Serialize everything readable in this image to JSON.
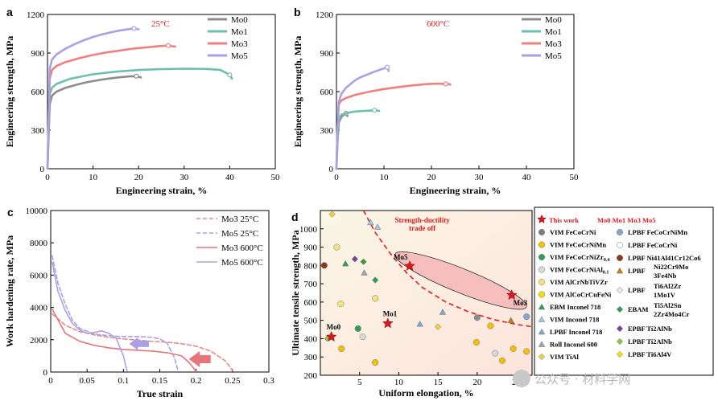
{
  "chart_data": [
    {
      "panel": "a",
      "type": "line",
      "annotation": "25°C",
      "xlabel": "Engineering strain, %",
      "ylabel": "Engineering strength, MPa",
      "xlim": [
        0,
        50
      ],
      "ylim": [
        0,
        1200
      ],
      "xticks": [
        0,
        10,
        20,
        30,
        40,
        50
      ],
      "yticks": [
        0,
        300,
        600,
        900,
        1200
      ],
      "legend_position": "top-right",
      "series": [
        {
          "name": "Mo0",
          "color": "#8c8c8c",
          "x": [
            0,
            0.25,
            0.5,
            1,
            2,
            4,
            6,
            8,
            10,
            12,
            14,
            16,
            18,
            19.5,
            20.5
          ],
          "y": [
            0,
            250,
            500,
            570,
            600,
            630,
            650,
            668,
            682,
            694,
            704,
            712,
            718,
            720,
            710
          ]
        },
        {
          "name": "Mo1",
          "color": "#6dbfb0",
          "x": [
            0,
            0.25,
            0.5,
            1,
            2,
            5,
            10,
            15,
            20,
            25,
            30,
            35,
            38,
            40,
            40.5
          ],
          "y": [
            0,
            300,
            580,
            630,
            660,
            700,
            735,
            755,
            768,
            775,
            778,
            776,
            768,
            730,
            700
          ]
        },
        {
          "name": "Mo3",
          "color": "#f08080",
          "x": [
            0,
            0.25,
            0.5,
            1,
            2,
            4,
            7,
            10,
            13,
            16,
            19,
            22,
            25,
            26.5,
            28
          ],
          "y": [
            0,
            350,
            700,
            770,
            800,
            830,
            860,
            885,
            905,
            920,
            935,
            945,
            955,
            958,
            950
          ]
        },
        {
          "name": "Mo5",
          "color": "#aaa0e8",
          "x": [
            0,
            0.25,
            0.5,
            1,
            2,
            4,
            6,
            8,
            10,
            12,
            14,
            16,
            18,
            19,
            20
          ],
          "y": [
            0,
            400,
            780,
            850,
            890,
            935,
            970,
            1000,
            1025,
            1045,
            1062,
            1076,
            1086,
            1090,
            1085
          ]
        }
      ]
    },
    {
      "panel": "b",
      "type": "line",
      "annotation": "600°C",
      "xlabel": "Engineering strain, %",
      "ylabel": "Engineering strength, MPa",
      "xlim": [
        0,
        50
      ],
      "ylim": [
        0,
        1200
      ],
      "xticks": [
        0,
        10,
        20,
        30,
        40,
        50
      ],
      "yticks": [
        0,
        300,
        600,
        900,
        1200
      ],
      "legend_position": "top-right",
      "series": [
        {
          "name": "Mo0",
          "color": "#8c8c8c",
          "x": [
            0,
            0.2,
            0.5,
            1,
            1.5,
            2,
            2.3
          ],
          "y": [
            0,
            200,
            360,
            400,
            420,
            430,
            410
          ]
        },
        {
          "name": "Mo1",
          "color": "#6dbfb0",
          "x": [
            0,
            0.2,
            0.5,
            1,
            2,
            3,
            4,
            5,
            6,
            7,
            8,
            9
          ],
          "y": [
            0,
            200,
            380,
            420,
            430,
            440,
            445,
            448,
            450,
            452,
            455,
            450
          ]
        },
        {
          "name": "Mo3",
          "color": "#f08080",
          "x": [
            0,
            0.2,
            0.5,
            1,
            2,
            4,
            7,
            10,
            13,
            16,
            19,
            21,
            23,
            24
          ],
          "y": [
            0,
            300,
            500,
            530,
            550,
            575,
            600,
            620,
            635,
            648,
            658,
            662,
            660,
            655
          ]
        },
        {
          "name": "Mo5",
          "color": "#aaa0e8",
          "x": [
            0,
            0.2,
            0.5,
            1,
            2,
            3,
            4,
            5,
            6,
            7,
            8,
            9,
            10,
            10.7,
            11
          ],
          "y": [
            0,
            300,
            520,
            580,
            630,
            660,
            690,
            710,
            725,
            740,
            755,
            768,
            780,
            790,
            760
          ]
        }
      ]
    },
    {
      "panel": "c",
      "type": "line",
      "xlabel": "True strain",
      "ylabel": "Work hardening rate, MPa",
      "xlim": [
        0,
        0.3
      ],
      "ylim": [
        0,
        10000
      ],
      "xticks": [
        0,
        0.05,
        0.1,
        0.15,
        0.2,
        0.25,
        0.3
      ],
      "xticklabels": [
        "0",
        "0.05",
        "0.1",
        "0.15",
        "0.2",
        "0.25",
        "0.3"
      ],
      "yticks": [
        0,
        2000,
        4000,
        6000,
        8000,
        10000
      ],
      "legend_position": "top-right",
      "series": [
        {
          "name": "Mo3 25°C",
          "color": "#e88a8a",
          "dashed": true,
          "x": [
            0.002,
            0.02,
            0.04,
            0.06,
            0.08,
            0.1,
            0.12,
            0.14,
            0.16,
            0.18,
            0.2,
            0.22,
            0.24,
            0.25
          ],
          "y": [
            3600,
            2900,
            2500,
            2300,
            2150,
            2050,
            1980,
            1900,
            1850,
            1750,
            1600,
            1300,
            700,
            100
          ]
        },
        {
          "name": "Mo5 25°C",
          "color": "#aaa0e8",
          "dashed": true,
          "x": [
            0.002,
            0.01,
            0.02,
            0.03,
            0.04,
            0.06,
            0.08,
            0.1,
            0.12,
            0.14,
            0.15,
            0.16,
            0.17,
            0.175
          ],
          "y": [
            7200,
            5500,
            4200,
            3200,
            2700,
            2350,
            2250,
            2200,
            2200,
            2150,
            2050,
            1800,
            900,
            100
          ]
        },
        {
          "name": "Mo3 600°C",
          "color": "#e8747c",
          "dashed": false,
          "x": [
            0.002,
            0.02,
            0.04,
            0.06,
            0.08,
            0.1,
            0.12,
            0.14,
            0.16,
            0.18,
            0.19,
            0.2
          ],
          "y": [
            3900,
            2400,
            1900,
            1650,
            1500,
            1400,
            1350,
            1300,
            1200,
            1000,
            600,
            50
          ]
        },
        {
          "name": "Mo5 600°C",
          "color": "#aaa0e8",
          "dashed": false,
          "x": [
            0.002,
            0.01,
            0.02,
            0.03,
            0.04,
            0.05,
            0.06,
            0.07,
            0.08,
            0.09,
            0.1,
            0.105
          ],
          "y": [
            6800,
            5000,
            3800,
            3000,
            2600,
            2400,
            2450,
            2550,
            2400,
            2100,
            1000,
            50
          ]
        }
      ]
    },
    {
      "panel": "d",
      "type": "scatter",
      "xlabel": "Uniform elongation, %",
      "ylabel": "Ultimate tensile strength, MPa",
      "xlim": [
        0,
        27
      ],
      "ylim": [
        200,
        1100
      ],
      "xticks": [
        5,
        10,
        15,
        20,
        25
      ],
      "yticks": [
        200,
        300,
        400,
        500,
        600,
        700,
        800,
        900,
        1000
      ],
      "this_work": [
        {
          "label": "Mo0",
          "x": 1.4,
          "y": 410
        },
        {
          "label": "Mo1",
          "x": 8.6,
          "y": 483
        },
        {
          "label": "Mo5",
          "x": 11.4,
          "y": 797
        },
        {
          "label": "Mo3",
          "x": 24.4,
          "y": 638
        }
      ],
      "trade_off_label": [
        "Strength-ductility",
        "trade off"
      ],
      "trade_off_curve_x": [
        5.5,
        7,
        9,
        11,
        13,
        16,
        19,
        22,
        25,
        27
      ],
      "trade_off_curve_y": [
        1100,
        980,
        860,
        760,
        680,
        600,
        545,
        505,
        478,
        465
      ],
      "others": [
        {
          "x": 1.5,
          "y": 1080,
          "c": "#f2d03b",
          "s": "d"
        },
        {
          "x": 2.1,
          "y": 900,
          "c": "#f6e27a",
          "s": "c"
        },
        {
          "x": 2.6,
          "y": 590,
          "c": "#f6e27a",
          "s": "c"
        },
        {
          "x": 0.9,
          "y": 400,
          "c": "#8bc34a",
          "s": "d"
        },
        {
          "x": 0.5,
          "y": 800,
          "c": "#8b3a1a",
          "s": "c"
        },
        {
          "x": 2.7,
          "y": 345,
          "c": "#f2c200",
          "s": "c"
        },
        {
          "x": 3.2,
          "y": 810,
          "c": "#2e9e5a",
          "s": "t"
        },
        {
          "x": 4.4,
          "y": 835,
          "c": "#7b3fa0",
          "s": "d"
        },
        {
          "x": 5.5,
          "y": 820,
          "c": "#3a9a3a",
          "s": "d"
        },
        {
          "x": 5.6,
          "y": 760,
          "c": "#9aa7b0",
          "s": "t"
        },
        {
          "x": 4.8,
          "y": 455,
          "c": "#2e9e5a",
          "s": "c"
        },
        {
          "x": 5.4,
          "y": 410,
          "c": "#d8d8d8",
          "s": "c"
        },
        {
          "x": 6.4,
          "y": 1035,
          "c": "#9fc5e8",
          "s": "t"
        },
        {
          "x": 7.3,
          "y": 1010,
          "c": "#9fc5e8",
          "s": "t"
        },
        {
          "x": 7.0,
          "y": 620,
          "c": "#f6e27a",
          "s": "c"
        },
        {
          "x": 7.0,
          "y": 720,
          "c": "#2e9e5a",
          "s": "d"
        },
        {
          "x": 7.0,
          "y": 270,
          "c": "#f2c200",
          "s": "c"
        },
        {
          "x": 12.7,
          "y": 480,
          "c": "#7fa7c9",
          "s": "t"
        },
        {
          "x": 15.0,
          "y": 465,
          "c": "#f2d03b",
          "s": "d"
        },
        {
          "x": 15.6,
          "y": 545,
          "c": "#7fa7c9",
          "s": "t"
        },
        {
          "x": 20.0,
          "y": 515,
          "c": "#8c8c8c",
          "s": "c"
        },
        {
          "x": 19.9,
          "y": 380,
          "c": "#f2c200",
          "s": "c"
        },
        {
          "x": 21.7,
          "y": 470,
          "c": "#f2c200",
          "s": "c"
        },
        {
          "x": 22.3,
          "y": 320,
          "c": "#d8d8d8",
          "s": "c"
        },
        {
          "x": 23.2,
          "y": 280,
          "c": "#f2c200",
          "s": "c"
        },
        {
          "x": 24.3,
          "y": 500,
          "c": "#b8860b",
          "s": "t"
        },
        {
          "x": 24.6,
          "y": 345,
          "c": "#f2c200",
          "s": "c"
        },
        {
          "x": 26.3,
          "y": 520,
          "c": "#7fa7c9",
          "s": "c"
        },
        {
          "x": 26.3,
          "y": 330,
          "c": "#f2c200",
          "s": "c"
        }
      ]
    }
  ],
  "panel_labels": {
    "a": "a",
    "b": "b",
    "c": "c",
    "d": "d"
  },
  "legend_d": {
    "header": {
      "label": "This work",
      "compositions": "Mo0   Mo1   Mo3   Mo5"
    },
    "left": [
      {
        "label": "VIM FeCoCrNi",
        "c": "#7f7f7f",
        "s": "c"
      },
      {
        "label": "VIM FeCoCrNiMn",
        "c": "#f2c200",
        "s": "c"
      },
      {
        "label": "VIM FeCoCrNiZr",
        "sub": "0.4",
        "c": "#2e9e5a",
        "s": "c"
      },
      {
        "label": "VIM FeCoCrNiAl",
        "sub": "0.1",
        "c": "#d8d8d8",
        "s": "c"
      },
      {
        "label": "VIM AlCrNbTiVZr",
        "c": "#f6e27a",
        "s": "c"
      },
      {
        "label": "VIM AlCoCrCuFeNi",
        "c": "#f2e000",
        "s": "c"
      },
      {
        "label": "EBM Inconel 718",
        "c": "#2e9e5a",
        "s": "t"
      },
      {
        "label": "VIM Inconel 718",
        "c": "#9fc5e8",
        "s": "t"
      },
      {
        "label": "LPBF Inconel 718",
        "c": "#7fa7c9",
        "s": "t"
      },
      {
        "label": "Roll Inconel 600",
        "c": "#9aa7b0",
        "s": "t"
      },
      {
        "label": "VIM TiAl",
        "c": "#f2d03b",
        "s": "d"
      }
    ],
    "right": [
      {
        "label": "LPBF FeCoCrNiMn",
        "c": "#7fa7c9",
        "s": "c"
      },
      {
        "label": "LPBF FeCoCrNi",
        "c": "#ffffff",
        "s": "c"
      },
      {
        "label": "LPBF Ni41Al41Cr12Co6",
        "c": "#8b3a1a",
        "s": "c"
      },
      {
        "label": "LPBF",
        "extra": [
          "Ni22Cr9Mo",
          "3Fe4Nb"
        ],
        "c": "#b8860b",
        "s": "t"
      },
      {
        "label": "LPBF",
        "extra": [
          "Ti6Al2Zr",
          "1Mo1V"
        ],
        "c": "#e8e8e8",
        "s": "d"
      },
      {
        "label": "EBAM",
        "extra": [
          "Ti5Al2Sn",
          "2Zr4Mo4Cr"
        ],
        "c": "#2e9e5a",
        "s": "d"
      },
      {
        "label": "EPBF Ti2AlNb",
        "c": "#7b3fa0",
        "s": "d"
      },
      {
        "label": "LPBF Ti2AlNb",
        "c": "#8bc34a",
        "s": "d"
      },
      {
        "label": "LPBF Ti6Al4V",
        "c": "#f2e000",
        "s": "d"
      }
    ]
  },
  "watermark": "公众号 · 材料学网"
}
